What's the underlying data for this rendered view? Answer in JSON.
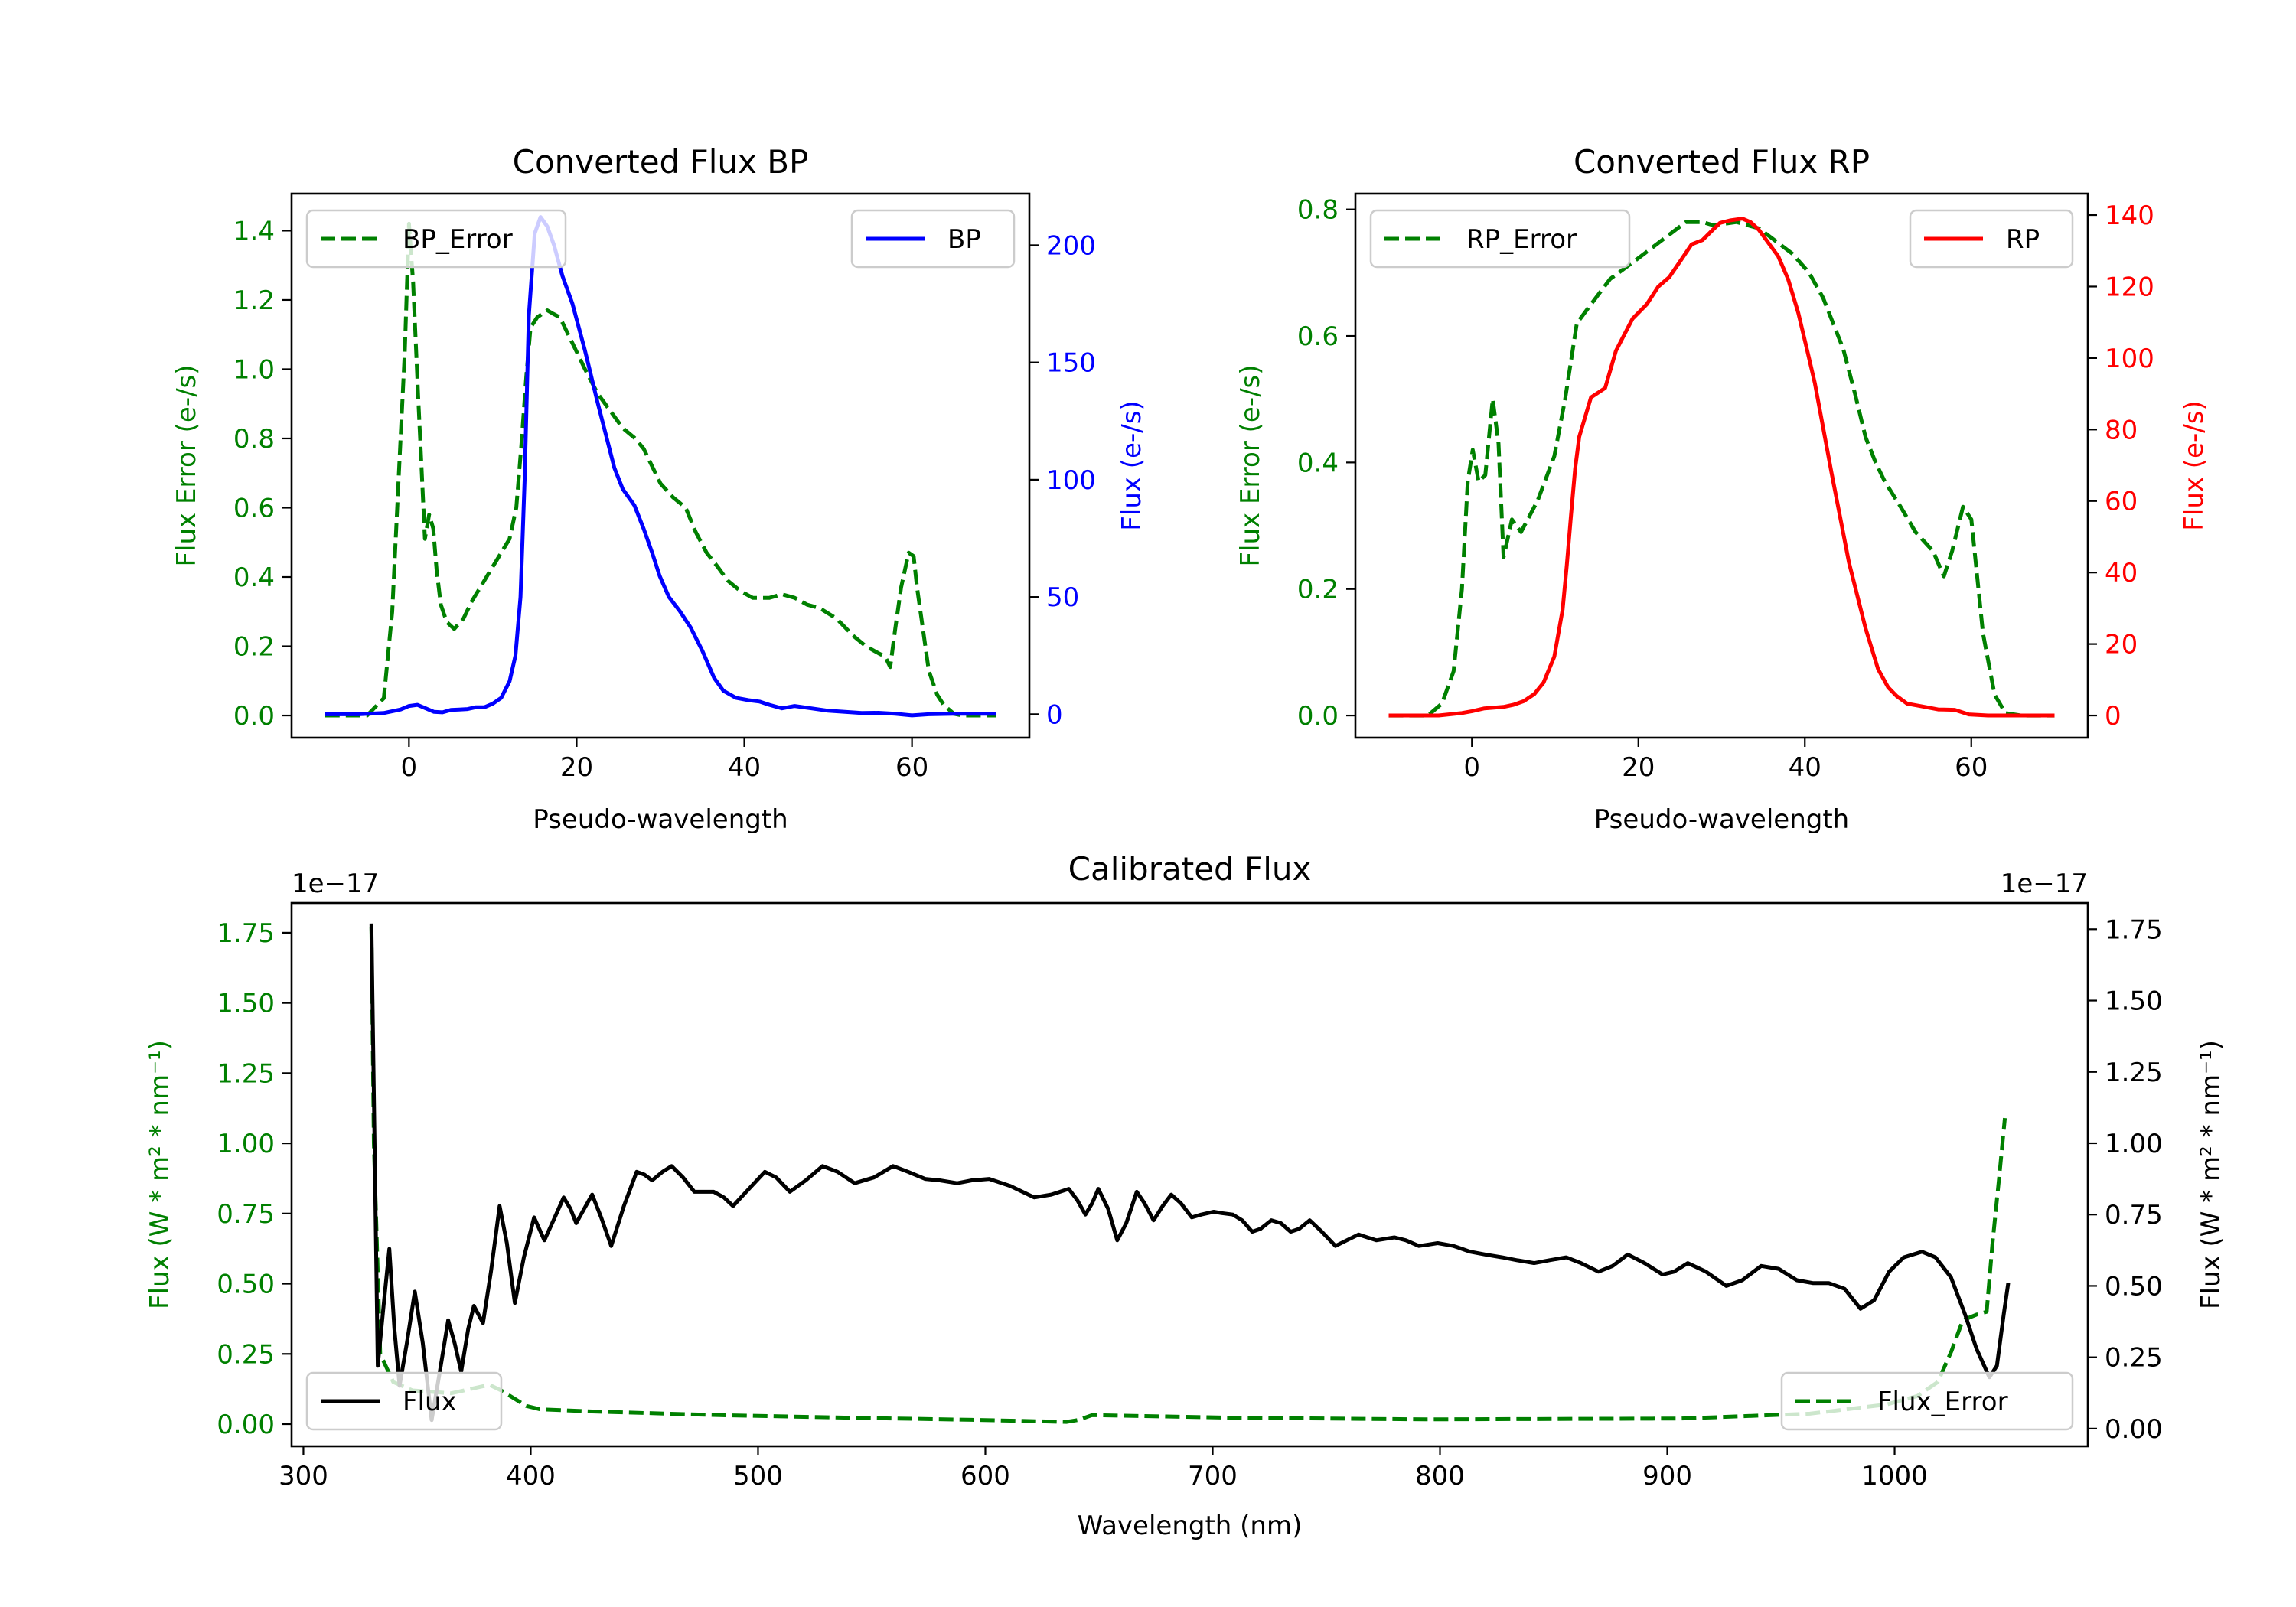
{
  "chart_data": [
    {
      "type": "line",
      "title": "Converted Flux BP",
      "xlabel": "Pseudo-wavelength",
      "ylabel_left": "Flux Error (e-/s)",
      "ylabel_right": "Flux (e-/s)",
      "left_color": "#008000",
      "right_color": "#0000ff",
      "xlim": [
        -14,
        74
      ],
      "ylim_left": [
        -0.064,
        1.507
      ],
      "ylim_right": [
        -10,
        222
      ],
      "xticks": {
        "values": [
          0,
          20,
          40,
          60
        ],
        "labels": [
          "0",
          "20",
          "40",
          "60"
        ]
      },
      "yticks_left": {
        "values": [
          0,
          0.2,
          0.4,
          0.6,
          0.8,
          1.0,
          1.2,
          1.4
        ],
        "labels": [
          "0.0",
          "0.2",
          "0.4",
          "0.6",
          "0.8",
          "1.0",
          "1.2",
          "1.4"
        ]
      },
      "yticks_right": {
        "values": [
          0,
          50,
          100,
          150,
          200
        ],
        "labels": [
          "0",
          "50",
          "100",
          "150",
          "200"
        ]
      },
      "grid": false,
      "series": [
        {
          "name": "BP_Error",
          "axis": "left",
          "color": "#008000",
          "style": "dashed",
          "legend": "upper left",
          "x": [
            -10,
            -5,
            -3,
            -2,
            -1.2,
            -0.5,
            0,
            0.5,
            1.1,
            1.9,
            2.4,
            2.9,
            3.3,
            3.8,
            4.5,
            5.4,
            6.5,
            7.5,
            9,
            10,
            11,
            12,
            12.8,
            13.4,
            14,
            14.5,
            15.3,
            16.5,
            17.2,
            18,
            19,
            20,
            21,
            22.5,
            24,
            25.5,
            27,
            28,
            29,
            30,
            31.5,
            33,
            34.2,
            35.5,
            36.8,
            38,
            39.5,
            41,
            43,
            44.5,
            46,
            47.5,
            49,
            51,
            53,
            54.5,
            56,
            56.8,
            57.4,
            58,
            58.7,
            59.6,
            60.2,
            60.6,
            61.3,
            62,
            63,
            63.8,
            65,
            66,
            70
          ],
          "y": [
            0,
            0,
            0.05,
            0.3,
            0.7,
            1.05,
            1.42,
            1.25,
            0.92,
            0.51,
            0.58,
            0.54,
            0.42,
            0.32,
            0.27,
            0.25,
            0.28,
            0.33,
            0.39,
            0.43,
            0.47,
            0.51,
            0.6,
            0.78,
            0.98,
            1.12,
            1.15,
            1.17,
            1.16,
            1.15,
            1.1,
            1.05,
            1.0,
            0.93,
            0.88,
            0.83,
            0.8,
            0.77,
            0.72,
            0.67,
            0.63,
            0.6,
            0.53,
            0.47,
            0.43,
            0.39,
            0.36,
            0.34,
            0.34,
            0.35,
            0.34,
            0.32,
            0.31,
            0.28,
            0.23,
            0.2,
            0.18,
            0.17,
            0.14,
            0.25,
            0.37,
            0.47,
            0.46,
            0.37,
            0.25,
            0.13,
            0.06,
            0.03,
            0.005,
            0,
            0
          ]
        },
        {
          "name": "BP",
          "axis": "right",
          "color": "#0000ff",
          "style": "solid",
          "legend": "upper right",
          "x": [
            -10,
            -6,
            -3,
            -1,
            0,
            1,
            2,
            3,
            4,
            5,
            6,
            7,
            8,
            9,
            10,
            11,
            12,
            12.7,
            13.3,
            13.8,
            14.3,
            15,
            15.7,
            16.5,
            17.3,
            18.3,
            19.5,
            21,
            22.5,
            24,
            24.5,
            25.5,
            26.9,
            28,
            29,
            29.9,
            31,
            32.3,
            33.6,
            35,
            36.4,
            37.5,
            39,
            40.5,
            41.8,
            43,
            44.5,
            46,
            48,
            50,
            52,
            54,
            56,
            58,
            60,
            62,
            65,
            70
          ],
          "y": [
            0,
            0,
            0.5,
            2,
            3.5,
            4,
            2.5,
            1,
            0.8,
            1.8,
            2,
            2.2,
            3,
            3,
            4.5,
            7,
            14,
            25,
            50,
            100,
            170,
            205,
            212,
            208,
            200,
            187,
            175,
            155,
            133,
            112,
            105,
            96,
            89,
            79,
            69,
            59,
            50,
            44,
            37,
            27,
            15.5,
            10,
            7,
            6,
            5.4,
            4,
            2.5,
            3.5,
            2.5,
            1.5,
            1,
            0.5,
            0.6,
            0.2,
            -0.5,
            0,
            0.2,
            0.2
          ]
        }
      ]
    },
    {
      "type": "line",
      "title": "Converted Flux RP",
      "xlabel": "Pseudo-wavelength",
      "ylabel_left": "Flux Error (e-/s)",
      "ylabel_right": "Flux (e-/s)",
      "left_color": "#008000",
      "right_color": "#ff0000",
      "xlim": [
        -14,
        74
      ],
      "ylim_left": [
        -0.035,
        0.825
      ],
      "ylim_right": [
        -6.2,
        146
      ],
      "xticks": {
        "values": [
          0,
          20,
          40,
          60
        ],
        "labels": [
          "0",
          "20",
          "40",
          "60"
        ]
      },
      "yticks_left": {
        "values": [
          0,
          0.2,
          0.4,
          0.6,
          0.8
        ],
        "labels": [
          "0.0",
          "0.2",
          "0.4",
          "0.6",
          "0.8"
        ]
      },
      "yticks_right": {
        "values": [
          0,
          20,
          40,
          60,
          80,
          100,
          120,
          140
        ],
        "labels": [
          "0",
          "20",
          "40",
          "60",
          "80",
          "100",
          "120",
          "140"
        ]
      },
      "grid": false,
      "series": [
        {
          "name": "RP_Error",
          "axis": "left",
          "color": "#008000",
          "style": "dashed",
          "legend": "upper left",
          "x": [
            -10,
            -5.3,
            -3.6,
            -2.2,
            -1.2,
            -0.5,
            0.1,
            0.8,
            1.6,
            2.5,
            3.2,
            3.8,
            4.8,
            5.9,
            7.9,
            9.9,
            11.2,
            12.6,
            14.3,
            16.6,
            19.7,
            22.7,
            25.7,
            27.7,
            29,
            31.8,
            34.5,
            36.5,
            38.5,
            40.5,
            42.2,
            43.4,
            44.6,
            46,
            47.3,
            48.5,
            49.6,
            51.5,
            53.3,
            55.4,
            56.7,
            57.7,
            59,
            60,
            60.7,
            61.4,
            62.8,
            64.1,
            66,
            70
          ],
          "y": [
            0,
            0,
            0.019,
            0.07,
            0.2,
            0.37,
            0.42,
            0.37,
            0.38,
            0.5,
            0.43,
            0.25,
            0.31,
            0.29,
            0.34,
            0.41,
            0.5,
            0.62,
            0.65,
            0.69,
            0.72,
            0.75,
            0.78,
            0.78,
            0.775,
            0.78,
            0.77,
            0.75,
            0.73,
            0.7,
            0.66,
            0.62,
            0.58,
            0.51,
            0.44,
            0.4,
            0.37,
            0.33,
            0.29,
            0.26,
            0.22,
            0.26,
            0.33,
            0.31,
            0.22,
            0.13,
            0.033,
            0.004,
            0,
            0
          ]
        },
        {
          "name": "RP",
          "axis": "right",
          "color": "#ff0000",
          "style": "solid",
          "legend": "upper right",
          "x": [
            -10,
            -4,
            -1.2,
            0,
            1.5,
            3.8,
            5,
            6.2,
            7.5,
            8.6,
            9.9,
            10.9,
            11.4,
            11.9,
            12.4,
            12.9,
            14.3,
            16,
            17.3,
            19.3,
            21,
            22.4,
            23.7,
            25,
            26.4,
            27.7,
            29,
            29.8,
            31,
            32.5,
            33.5,
            34.5,
            36.8,
            38,
            39.2,
            40.2,
            41.2,
            43.2,
            45.3,
            47.3,
            48.8,
            50,
            51,
            52.3,
            54,
            56,
            58,
            59.7,
            62,
            70
          ],
          "y": [
            0,
            0,
            0.7,
            1.2,
            2,
            2.4,
            3,
            4,
            6,
            9.2,
            16.5,
            29.7,
            42,
            56,
            69,
            78,
            89,
            91.6,
            102,
            111,
            115,
            120,
            122.6,
            127,
            131.8,
            133,
            136,
            137.8,
            138.5,
            139,
            138,
            135.8,
            128.5,
            122,
            112.7,
            103,
            93,
            67.9,
            42.8,
            24.4,
            13,
            7.9,
            5.5,
            3.3,
            2.6,
            1.7,
            1.6,
            0.3,
            0,
            0
          ]
        }
      ]
    },
    {
      "type": "line",
      "title": "Calibrated Flux",
      "xlabel": "Wavelength (nm)",
      "ylabel_left": "Flux (W * m² * nm⁻¹)",
      "ylabel_right": "Flux (W * m² * nm⁻¹)",
      "offset_left": "1e−17",
      "offset_right": "1e−17",
      "left_color": "#008000",
      "right_color": "#000000",
      "xlim": [
        294.8,
        1085
      ],
      "ylim_left": [
        -0.079,
        1.856
      ],
      "ylim_right": [
        -0.062,
        1.842
      ],
      "xticks": {
        "values": [
          300,
          400,
          500,
          600,
          700,
          800,
          900,
          1000
        ],
        "labels": [
          "300",
          "400",
          "500",
          "600",
          "700",
          "800",
          "900",
          "1000"
        ]
      },
      "yticks_left": {
        "values": [
          0,
          0.25,
          0.5,
          0.75,
          1.0,
          1.25,
          1.5,
          1.75
        ],
        "labels": [
          "0.00",
          "0.25",
          "0.50",
          "0.75",
          "1.00",
          "1.25",
          "1.50",
          "1.75"
        ]
      },
      "yticks_right": {
        "values": [
          0,
          0.25,
          0.5,
          0.75,
          1.0,
          1.25,
          1.5,
          1.75
        ],
        "labels": [
          "0.00",
          "0.25",
          "0.50",
          "0.75",
          "1.00",
          "1.25",
          "1.50",
          "1.75"
        ]
      },
      "grid": false,
      "series": [
        {
          "name": "Flux_Error",
          "axis": "left",
          "color": "#008000",
          "style": "dashed",
          "legend": "lower right",
          "x": [
            329.9,
            331,
            333.8,
            339.5,
            348,
            365,
            381.8,
            387,
            393,
            398,
            404,
            427,
            483,
            539.7,
            596,
            635.6,
            641,
            646.9,
            708.9,
            793.5,
            906,
            962.7,
            996.5,
            1010,
            1019,
            1025,
            1030,
            1036,
            1040.5,
            1043,
            1046,
            1048.5
          ],
          "y": [
            1.77,
            1.0,
            0.25,
            0.15,
            0.12,
            0.11,
            0.14,
            0.12,
            0.09,
            0.065,
            0.053,
            0.045,
            0.032,
            0.023,
            0.015,
            0.008,
            0.015,
            0.032,
            0.023,
            0.017,
            0.02,
            0.037,
            0.07,
            0.1,
            0.15,
            0.26,
            0.37,
            0.39,
            0.4,
            0.64,
            0.88,
            1.09
          ]
        },
        {
          "name": "Flux",
          "axis": "right",
          "color": "#000000",
          "style": "solid",
          "legend": "lower left",
          "x": [
            329.9,
            332.7,
            335.5,
            337.8,
            340,
            342.3,
            345.5,
            349,
            352.5,
            356.4,
            360,
            363.7,
            366.5,
            369.4,
            372.5,
            375,
            379,
            382.5,
            386.3,
            389.5,
            393,
            397,
            401.5,
            406,
            410,
            414.5,
            417.5,
            420,
            423.5,
            427,
            431,
            435.4,
            441,
            446.6,
            450,
            453.4,
            458,
            462,
            467,
            472,
            476,
            480.5,
            485,
            489,
            496,
            503,
            508,
            514,
            521,
            528.4,
            535,
            542.5,
            551,
            559.4,
            566,
            573.5,
            580,
            587.6,
            594,
            601.7,
            611,
            621.5,
            629,
            636.7,
            640.5,
            644,
            647,
            649.7,
            654,
            658,
            662,
            666.6,
            670,
            674,
            678,
            681.8,
            686,
            690.8,
            695,
            700.5,
            704,
            708.9,
            713,
            717.4,
            721,
            725.8,
            730,
            734.3,
            738,
            742.7,
            748,
            754,
            759,
            764.2,
            768,
            772,
            776,
            780,
            785,
            790.7,
            795,
            799,
            806,
            813.3,
            820,
            827.4,
            834,
            841.5,
            848,
            855.5,
            862,
            869.7,
            876,
            882.6,
            890,
            897.9,
            903,
            909,
            917,
            926,
            933,
            941.3,
            949,
            957,
            964,
            971,
            978,
            985,
            991,
            997.6,
            1004,
            1012,
            1018,
            1024.8,
            1031,
            1036,
            1041.7,
            1045,
            1048,
            1050
          ],
          "y": [
            1.77,
            0.22,
            0.45,
            0.63,
            0.35,
            0.15,
            0.3,
            0.48,
            0.3,
            0.03,
            0.2,
            0.38,
            0.3,
            0.2,
            0.35,
            0.43,
            0.37,
            0.55,
            0.78,
            0.65,
            0.44,
            0.6,
            0.74,
            0.66,
            0.73,
            0.81,
            0.77,
            0.72,
            0.77,
            0.82,
            0.74,
            0.64,
            0.78,
            0.9,
            0.89,
            0.87,
            0.9,
            0.92,
            0.88,
            0.83,
            0.83,
            0.83,
            0.81,
            0.78,
            0.84,
            0.9,
            0.88,
            0.83,
            0.87,
            0.92,
            0.9,
            0.86,
            0.88,
            0.92,
            0.9,
            0.875,
            0.87,
            0.86,
            0.87,
            0.875,
            0.85,
            0.81,
            0.82,
            0.84,
            0.8,
            0.75,
            0.79,
            0.84,
            0.77,
            0.66,
            0.72,
            0.83,
            0.79,
            0.73,
            0.78,
            0.82,
            0.79,
            0.74,
            0.75,
            0.76,
            0.755,
            0.75,
            0.73,
            0.69,
            0.7,
            0.73,
            0.72,
            0.69,
            0.7,
            0.73,
            0.69,
            0.64,
            0.66,
            0.68,
            0.67,
            0.66,
            0.665,
            0.67,
            0.66,
            0.64,
            0.645,
            0.65,
            0.64,
            0.62,
            0.61,
            0.6,
            0.59,
            0.58,
            0.59,
            0.6,
            0.58,
            0.55,
            0.57,
            0.61,
            0.58,
            0.54,
            0.55,
            0.58,
            0.55,
            0.5,
            0.52,
            0.57,
            0.56,
            0.52,
            0.51,
            0.51,
            0.49,
            0.42,
            0.45,
            0.55,
            0.6,
            0.62,
            0.6,
            0.53,
            0.4,
            0.28,
            0.18,
            0.22,
            0.4,
            0.51
          ]
        }
      ]
    }
  ]
}
